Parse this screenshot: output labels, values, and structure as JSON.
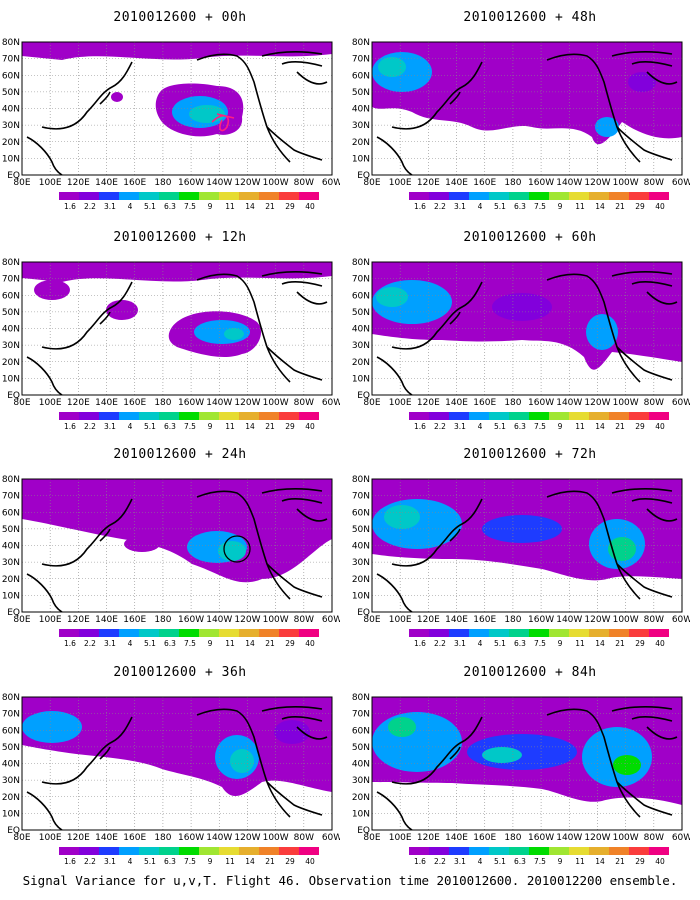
{
  "figure": {
    "footer": "Signal Variance for u,v,T. Flight 46. Observation time 2010012600. 2010012200 ensemble.",
    "latitude_labels": [
      "80N",
      "70N",
      "60N",
      "50N",
      "40N",
      "30N",
      "20N",
      "10N",
      "EQ"
    ],
    "longitude_labels": [
      "80E",
      "100E",
      "120E",
      "140E",
      "160E",
      "180",
      "160W",
      "140W",
      "120W",
      "100W",
      "80W",
      "60W"
    ],
    "colorbar": {
      "labels": [
        "1.6",
        "2.2",
        "3.1",
        "4",
        "5.1",
        "6.3",
        "7.5",
        "9",
        "11",
        "14",
        "21",
        "29",
        "40"
      ],
      "colors": [
        "#a000c8",
        "#8200dc",
        "#1e3cff",
        "#00a0ff",
        "#00c8c8",
        "#00d28c",
        "#00dc00",
        "#a0e632",
        "#e6dc32",
        "#e6af2d",
        "#f08228",
        "#fa3c3c",
        "#f00082"
      ]
    },
    "panels": [
      {
        "id": "p00",
        "title": "2010012600 + 00h",
        "marker": "track"
      },
      {
        "id": "p48",
        "title": "2010012600 + 48h"
      },
      {
        "id": "p12",
        "title": "2010012600 + 12h"
      },
      {
        "id": "p60",
        "title": "2010012600 + 60h"
      },
      {
        "id": "p24",
        "title": "2010012600 + 24h",
        "marker": "circle"
      },
      {
        "id": "p72",
        "title": "2010012600 + 72h"
      },
      {
        "id": "p36",
        "title": "2010012600 + 36h"
      },
      {
        "id": "p84",
        "title": "2010012600 + 84h"
      }
    ]
  }
}
